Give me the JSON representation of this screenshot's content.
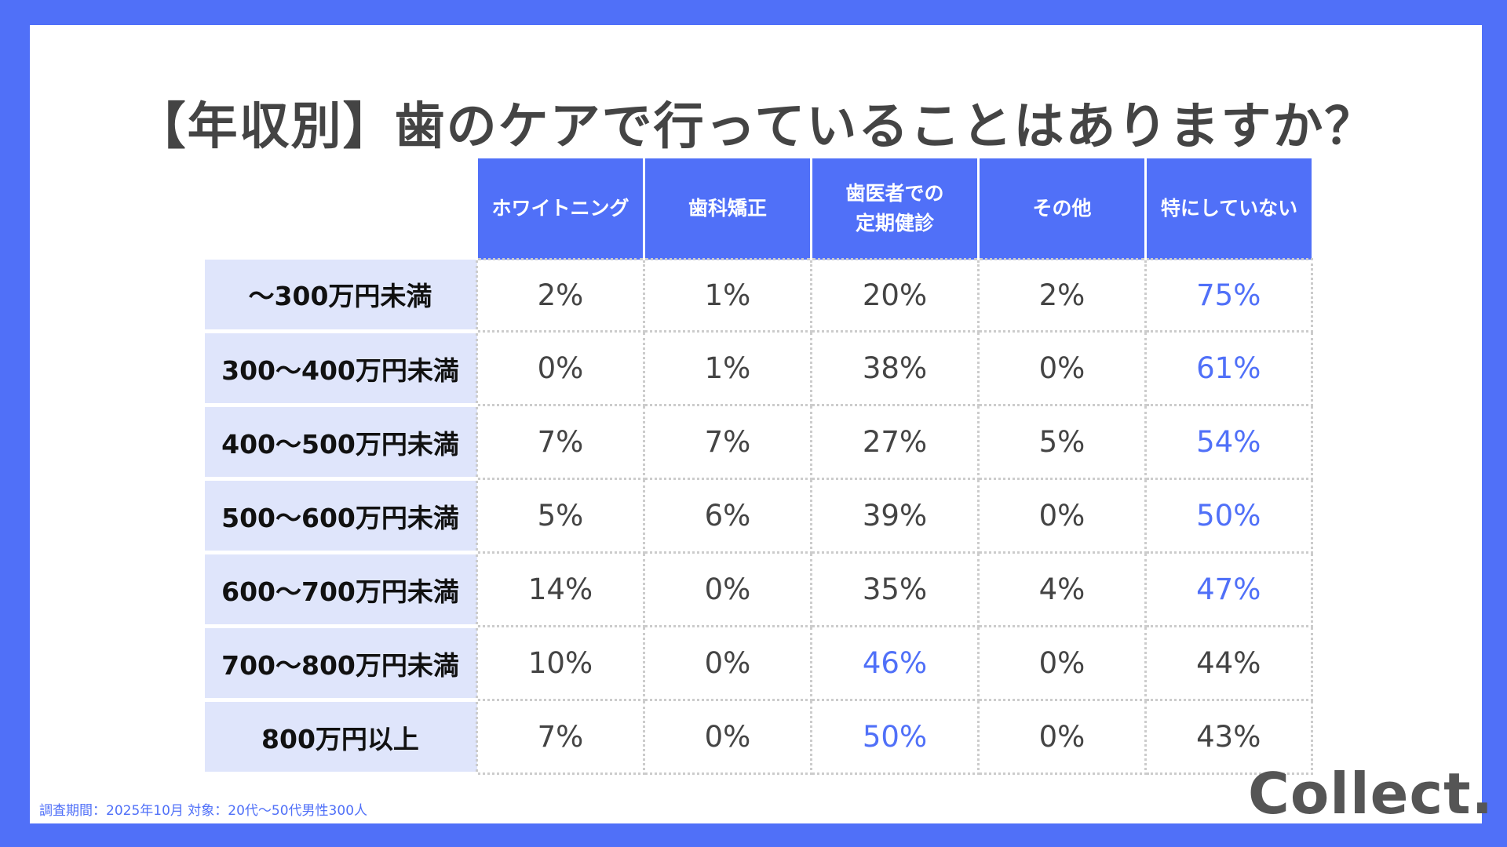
{
  "colors": {
    "frame": "#5070f8",
    "header_bg": "#5070f8",
    "row_label_bg": "#dfe5fb",
    "highlight": "#5070f8",
    "value_text": "#444444"
  },
  "chart_data": {
    "type": "table",
    "title": "【年収別】歯のケアで行っていることはありますか？",
    "columns": [
      "ホワイトニング",
      "歯科矯正",
      "歯医者での\n定期健診",
      "その他",
      "特にしていない"
    ],
    "rows": [
      {
        "label": "〜300万円未満",
        "values": [
          "2%",
          "1%",
          "20%",
          "2%",
          "75%"
        ],
        "highlight": [
          4
        ]
      },
      {
        "label": "300〜400万円未満",
        "values": [
          "0%",
          "1%",
          "38%",
          "0%",
          "61%"
        ],
        "highlight": [
          4
        ]
      },
      {
        "label": "400〜500万円未満",
        "values": [
          "7%",
          "7%",
          "27%",
          "5%",
          "54%"
        ],
        "highlight": [
          4
        ]
      },
      {
        "label": "500〜600万円未満",
        "values": [
          "5%",
          "6%",
          "39%",
          "0%",
          "50%"
        ],
        "highlight": [
          4
        ]
      },
      {
        "label": "600〜700万円未満",
        "values": [
          "14%",
          "0%",
          "35%",
          "4%",
          "47%"
        ],
        "highlight": [
          4
        ]
      },
      {
        "label": "700〜800万円未満",
        "values": [
          "10%",
          "0%",
          "46%",
          "0%",
          "44%"
        ],
        "highlight": [
          2
        ]
      },
      {
        "label": "800万円以上",
        "values": [
          "7%",
          "0%",
          "50%",
          "0%",
          "43%"
        ],
        "highlight": [
          2
        ]
      }
    ]
  },
  "footnote": "調査期間：2025年10月 対象：20代〜50代男性300人",
  "logo": "Collect."
}
